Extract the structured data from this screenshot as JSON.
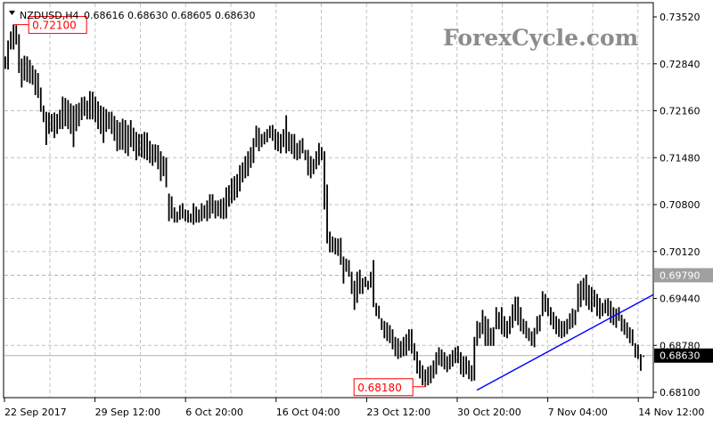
{
  "header": {
    "menu_icon": "triangle-down-icon",
    "symbol": "NZDUSD,H4",
    "ohlc": "0.68616 0.68630 0.68605 0.68630"
  },
  "watermark": "ForexCycle.com",
  "colors": {
    "bars": "#000000",
    "grid": "#c0c0c0",
    "annotation": "#ff0000",
    "trendline": "#0000ff",
    "level_box": "#a0a0a0",
    "current_box": "#000000"
  },
  "chart_data": {
    "type": "ohlc-bar",
    "symbol": "NZDUSD",
    "timeframe": "H4",
    "ylim": [
      0.681,
      0.7352
    ],
    "grid": true,
    "y_ticks": [
      "0.73520",
      "0.72840",
      "0.72160",
      "0.71480",
      "0.70800",
      "0.70120",
      "0.69440",
      "0.68780",
      "0.68100"
    ],
    "x_ticks": [
      "22 Sep 2017",
      "29 Sep 12:00",
      "6 Oct 20:00",
      "16 Oct 04:00",
      "23 Oct 12:00",
      "30 Oct 20:00",
      "7 Nov 04:00",
      "14 Nov 12:00"
    ],
    "annotations": {
      "high_label": "0.72100",
      "low_label": "0.68180"
    },
    "levels": {
      "resistance": {
        "value": 0.6979,
        "label": "0.69790"
      },
      "current": {
        "value": 0.6863,
        "label": "0.68630"
      }
    },
    "trendline": {
      "from_price": 0.6813,
      "to_price": 0.6951
    },
    "bars_high_low": [
      [
        0.7295,
        0.7277
      ],
      [
        0.7318,
        0.7276
      ],
      [
        0.7331,
        0.7305
      ],
      [
        0.7341,
        0.7305
      ],
      [
        0.734,
        0.7312
      ],
      [
        0.7327,
        0.7271
      ],
      [
        0.7292,
        0.725
      ],
      [
        0.7296,
        0.726
      ],
      [
        0.7295,
        0.7258
      ],
      [
        0.729,
        0.7256
      ],
      [
        0.7282,
        0.7254
      ],
      [
        0.7276,
        0.7239
      ],
      [
        0.7271,
        0.7235
      ],
      [
        0.725,
        0.7215
      ],
      [
        0.7224,
        0.72
      ],
      [
        0.7215,
        0.7167
      ],
      [
        0.7214,
        0.7183
      ],
      [
        0.7212,
        0.7186
      ],
      [
        0.7214,
        0.7177
      ],
      [
        0.7212,
        0.7183
      ],
      [
        0.7218,
        0.719
      ],
      [
        0.7237,
        0.719
      ],
      [
        0.7235,
        0.7194
      ],
      [
        0.7232,
        0.719
      ],
      [
        0.7227,
        0.7183
      ],
      [
        0.7224,
        0.7164
      ],
      [
        0.7226,
        0.7187
      ],
      [
        0.7228,
        0.7194
      ],
      [
        0.7236,
        0.7203
      ],
      [
        0.7237,
        0.7209
      ],
      [
        0.7231,
        0.7204
      ],
      [
        0.7245,
        0.7204
      ],
      [
        0.7244,
        0.7204
      ],
      [
        0.7237,
        0.72
      ],
      [
        0.723,
        0.719
      ],
      [
        0.7224,
        0.7183
      ],
      [
        0.7222,
        0.717
      ],
      [
        0.7219,
        0.7186
      ],
      [
        0.7215,
        0.719
      ],
      [
        0.7215,
        0.7183
      ],
      [
        0.7209,
        0.7173
      ],
      [
        0.7203,
        0.7158
      ],
      [
        0.72,
        0.716
      ],
      [
        0.7205,
        0.716
      ],
      [
        0.7203,
        0.7155
      ],
      [
        0.7196,
        0.7151
      ],
      [
        0.7203,
        0.7164
      ],
      [
        0.7192,
        0.7158
      ],
      [
        0.7186,
        0.7145
      ],
      [
        0.7183,
        0.7151
      ],
      [
        0.7183,
        0.7149
      ],
      [
        0.7186,
        0.7147
      ],
      [
        0.7185,
        0.7145
      ],
      [
        0.7173,
        0.7141
      ],
      [
        0.7168,
        0.7137
      ],
      [
        0.7168,
        0.7142
      ],
      [
        0.7167,
        0.7132
      ],
      [
        0.7158,
        0.7115
      ],
      [
        0.7151,
        0.7122
      ],
      [
        0.7149,
        0.7106
      ],
      [
        0.7097,
        0.7057
      ],
      [
        0.7093,
        0.7061
      ],
      [
        0.7077,
        0.7055
      ],
      [
        0.7071,
        0.7055
      ],
      [
        0.708,
        0.7059
      ],
      [
        0.7083,
        0.7061
      ],
      [
        0.7074,
        0.7057
      ],
      [
        0.7073,
        0.7055
      ],
      [
        0.7068,
        0.7055
      ],
      [
        0.7083,
        0.7052
      ],
      [
        0.7078,
        0.7055
      ],
      [
        0.7074,
        0.7055
      ],
      [
        0.7083,
        0.7057
      ],
      [
        0.708,
        0.7061
      ],
      [
        0.7087,
        0.7057
      ],
      [
        0.7096,
        0.7061
      ],
      [
        0.7096,
        0.7068
      ],
      [
        0.7087,
        0.7061
      ],
      [
        0.7087,
        0.7064
      ],
      [
        0.7089,
        0.7061
      ],
      [
        0.7091,
        0.706
      ],
      [
        0.7106,
        0.7061
      ],
      [
        0.7109,
        0.7078
      ],
      [
        0.7119,
        0.7083
      ],
      [
        0.7122,
        0.7087
      ],
      [
        0.7125,
        0.7091
      ],
      [
        0.7138,
        0.71
      ],
      [
        0.7142,
        0.7113
      ],
      [
        0.7151,
        0.7119
      ],
      [
        0.7158,
        0.7122
      ],
      [
        0.7164,
        0.7134
      ],
      [
        0.7177,
        0.7141
      ],
      [
        0.7195,
        0.7164
      ],
      [
        0.7192,
        0.7158
      ],
      [
        0.7183,
        0.7164
      ],
      [
        0.7186,
        0.7168
      ],
      [
        0.719,
        0.7171
      ],
      [
        0.7195,
        0.7177
      ],
      [
        0.7196,
        0.7173
      ],
      [
        0.719,
        0.716
      ],
      [
        0.7186,
        0.7158
      ],
      [
        0.7183,
        0.7155
      ],
      [
        0.719,
        0.7164
      ],
      [
        0.721,
        0.7155
      ],
      [
        0.7186,
        0.7158
      ],
      [
        0.7183,
        0.7154
      ],
      [
        0.7183,
        0.7147
      ],
      [
        0.717,
        0.7145
      ],
      [
        0.7174,
        0.7147
      ],
      [
        0.7177,
        0.7155
      ],
      [
        0.716,
        0.7145
      ],
      [
        0.716,
        0.7123
      ],
      [
        0.7151,
        0.7119
      ],
      [
        0.7147,
        0.7125
      ],
      [
        0.7158,
        0.7132
      ],
      [
        0.717,
        0.7138
      ],
      [
        0.7164,
        0.7145
      ],
      [
        0.7158,
        0.7074
      ],
      [
        0.711,
        0.7025
      ],
      [
        0.7042,
        0.7012
      ],
      [
        0.7035,
        0.7012
      ],
      [
        0.7033,
        0.7009
      ],
      [
        0.7032,
        0.7007
      ],
      [
        0.7033,
        0.6994
      ],
      [
        0.7006,
        0.6967
      ],
      [
        0.7003,
        0.6984
      ],
      [
        0.7001,
        0.6977
      ],
      [
        0.6984,
        0.6952
      ],
      [
        0.6971,
        0.6929
      ],
      [
        0.6984,
        0.6939
      ],
      [
        0.6987,
        0.6952
      ],
      [
        0.6975,
        0.6952
      ],
      [
        0.6977,
        0.6962
      ],
      [
        0.6971,
        0.6958
      ],
      [
        0.6984,
        0.6961
      ],
      [
        0.7001,
        0.6933
      ],
      [
        0.6939,
        0.692
      ],
      [
        0.6935,
        0.6916
      ],
      [
        0.6917,
        0.69
      ],
      [
        0.6913,
        0.6888
      ],
      [
        0.6911,
        0.6884
      ],
      [
        0.6907,
        0.6881
      ],
      [
        0.6901,
        0.6872
      ],
      [
        0.689,
        0.6862
      ],
      [
        0.6888,
        0.6858
      ],
      [
        0.6884,
        0.686
      ],
      [
        0.689,
        0.6862
      ],
      [
        0.6894,
        0.6863
      ],
      [
        0.6901,
        0.687
      ],
      [
        0.6901,
        0.6866
      ],
      [
        0.6881,
        0.6856
      ],
      [
        0.6869,
        0.6837
      ],
      [
        0.6856,
        0.683
      ],
      [
        0.6849,
        0.682
      ],
      [
        0.6843,
        0.6818
      ],
      [
        0.6847,
        0.682
      ],
      [
        0.6849,
        0.6823
      ],
      [
        0.6856,
        0.683
      ],
      [
        0.6868,
        0.6836
      ],
      [
        0.6875,
        0.6849
      ],
      [
        0.6872,
        0.6847
      ],
      [
        0.6868,
        0.6843
      ],
      [
        0.6862,
        0.6839
      ],
      [
        0.6865,
        0.6843
      ],
      [
        0.6871,
        0.6847
      ],
      [
        0.6875,
        0.6852
      ],
      [
        0.6877,
        0.6852
      ],
      [
        0.6868,
        0.6836
      ],
      [
        0.6862,
        0.6832
      ],
      [
        0.6862,
        0.6836
      ],
      [
        0.6856,
        0.6829
      ],
      [
        0.6849,
        0.6826
      ],
      [
        0.689,
        0.6827
      ],
      [
        0.6913,
        0.6877
      ],
      [
        0.6911,
        0.6888
      ],
      [
        0.6929,
        0.6894
      ],
      [
        0.692,
        0.6877
      ],
      [
        0.6916,
        0.6877
      ],
      [
        0.6903,
        0.6877
      ],
      [
        0.6904,
        0.6877
      ],
      [
        0.6933,
        0.6901
      ],
      [
        0.6926,
        0.6901
      ],
      [
        0.6933,
        0.6894
      ],
      [
        0.692,
        0.689
      ],
      [
        0.6913,
        0.6888
      ],
      [
        0.692,
        0.6894
      ],
      [
        0.6937,
        0.6903
      ],
      [
        0.6948,
        0.6913
      ],
      [
        0.6948,
        0.6907
      ],
      [
        0.6933,
        0.6898
      ],
      [
        0.6916,
        0.6894
      ],
      [
        0.6913,
        0.6888
      ],
      [
        0.6903,
        0.6884
      ],
      [
        0.6898,
        0.6877
      ],
      [
        0.6903,
        0.6875
      ],
      [
        0.692,
        0.6894
      ],
      [
        0.6922,
        0.6898
      ],
      [
        0.6956,
        0.692
      ],
      [
        0.6952,
        0.6926
      ],
      [
        0.6946,
        0.692
      ],
      [
        0.6933,
        0.6907
      ],
      [
        0.6926,
        0.6901
      ],
      [
        0.692,
        0.6894
      ],
      [
        0.6916,
        0.689
      ],
      [
        0.6913,
        0.6888
      ],
      [
        0.6913,
        0.689
      ],
      [
        0.6916,
        0.6894
      ],
      [
        0.6924,
        0.6901
      ],
      [
        0.6931,
        0.6903
      ],
      [
        0.6929,
        0.6907
      ],
      [
        0.6967,
        0.6926
      ],
      [
        0.6971,
        0.6933
      ],
      [
        0.6975,
        0.6943
      ],
      [
        0.698,
        0.6935
      ],
      [
        0.6965,
        0.6929
      ],
      [
        0.6962,
        0.6926
      ],
      [
        0.6958,
        0.6933
      ],
      [
        0.6952,
        0.692
      ],
      [
        0.6946,
        0.6916
      ],
      [
        0.6939,
        0.692
      ],
      [
        0.6944,
        0.6924
      ],
      [
        0.6946,
        0.692
      ],
      [
        0.6942,
        0.691
      ],
      [
        0.6933,
        0.6907
      ],
      [
        0.6931,
        0.6903
      ],
      [
        0.6933,
        0.6913
      ],
      [
        0.6922,
        0.6898
      ],
      [
        0.6916,
        0.6893
      ],
      [
        0.6911,
        0.6888
      ],
      [
        0.6904,
        0.6881
      ],
      [
        0.6901,
        0.6877
      ],
      [
        0.6881,
        0.686
      ],
      [
        0.6879,
        0.6858
      ],
      [
        0.6865,
        0.6841
      ],
      [
        0.6863,
        0.6861
      ]
    ]
  }
}
